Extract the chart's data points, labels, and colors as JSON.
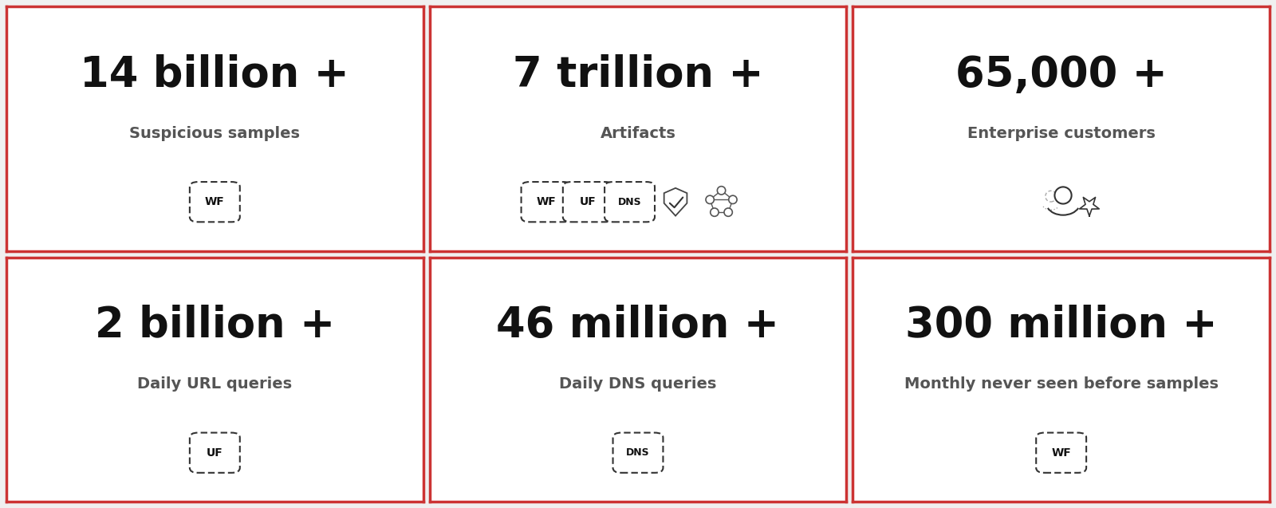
{
  "bg_color": "#f0f0f0",
  "card_bg": "#ffffff",
  "border_color": "#cc3333",
  "title_color": "#111111",
  "subtitle_color": "#555555",
  "tag_border_color": "#333333",
  "cells": [
    {
      "value": "14 billion +",
      "label": "Suspicious samples",
      "icon": "wf_only"
    },
    {
      "value": "7 trillion +",
      "label": "Artifacts",
      "icon": "wf_uf_dns_shield_network"
    },
    {
      "value": "65,000 +",
      "label": "Enterprise customers",
      "icon": "enterprise"
    },
    {
      "value": "2 billion +",
      "label": "Daily URL queries",
      "icon": "uf_only"
    },
    {
      "value": "46 million +",
      "label": "Daily DNS queries",
      "icon": "dns_only"
    },
    {
      "value": "300 million +",
      "label": "Monthly never seen before samples",
      "icon": "wf_only"
    }
  ],
  "grid_cols": 3,
  "grid_rows": 2,
  "value_fontsize": 38,
  "label_fontsize": 14
}
